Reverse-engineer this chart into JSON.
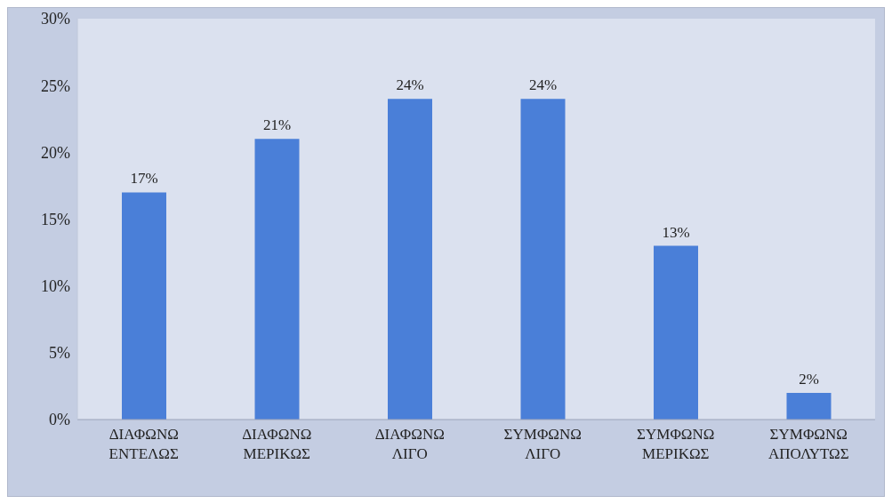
{
  "chart_data": {
    "type": "bar",
    "categories": [
      "ΔΙΑΦΩΝΩ ΕΝΤΕΛΩΣ",
      "ΔΙΑΦΩΝΩ ΜΕΡΙΚΩΣ",
      "ΔΙΑΦΩΝΩ ΛΙΓΟ",
      "ΣΥΜΦΩΝΩ ΛΙΓΟ",
      "ΣΥΜΦΩΝΩ ΜΕΡΙΚΩΣ",
      "ΣΥΜΦΩΝΩ ΑΠΟΛΥΤΩΣ"
    ],
    "values": [
      17,
      21,
      24,
      24,
      13,
      2
    ],
    "value_labels": [
      "17%",
      "21%",
      "24%",
      "24%",
      "13%",
      "2%"
    ],
    "color": "#4a7fd8",
    "ylim": [
      0,
      30
    ],
    "yticks": [
      {
        "value": 0,
        "label": "0%"
      },
      {
        "value": 5,
        "label": "5%"
      },
      {
        "value": 10,
        "label": "10%"
      },
      {
        "value": 15,
        "label": "15%"
      },
      {
        "value": 20,
        "label": "20%"
      },
      {
        "value": 25,
        "label": "25%"
      },
      {
        "value": 30,
        "label": "30%"
      }
    ],
    "grid": false,
    "legend": false
  }
}
